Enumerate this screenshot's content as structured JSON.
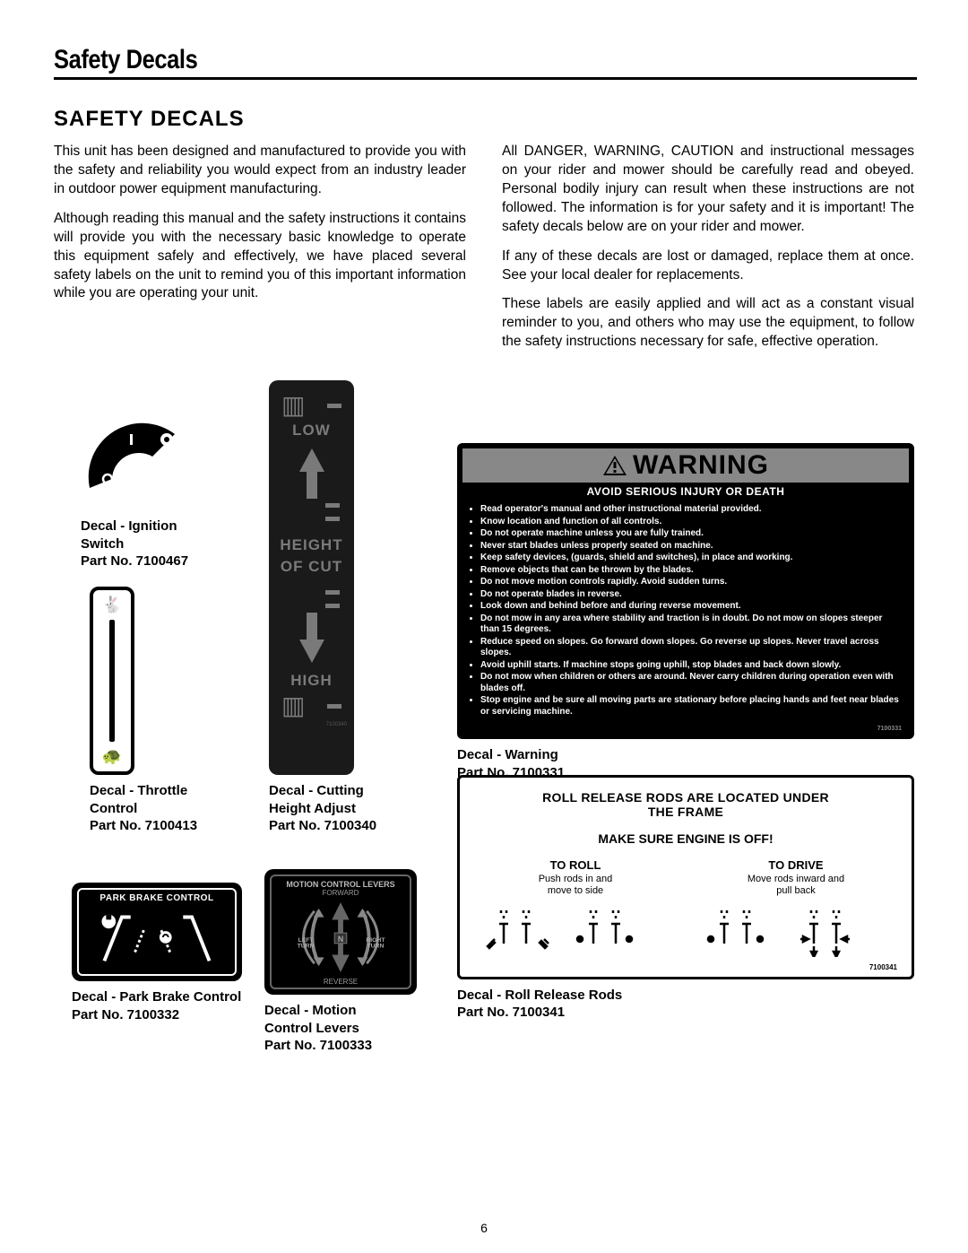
{
  "page": {
    "section_title": "Safety Decals",
    "subheading": "SAFETY DECALS",
    "page_number": "6"
  },
  "paragraphs": {
    "left": [
      "This unit has been designed and manufactured to provide you with the safety and reliability you would expect from an industry leader in outdoor power equipment manufacturing.",
      "Although reading this manual and the safety instructions it contains will provide you with the necessary basic knowledge to operate this equipment safely and effectively, we have placed several safety labels on the unit to remind you of this important information while you are operating your unit."
    ],
    "right": [
      "All DANGER, WARNING, CAUTION and instructional messages on your rider and mower should be carefully read and obeyed. Personal bodily injury can result when these instructions are not followed. The information is for your safety and it is important! The safety decals below are on your rider and mower.",
      "If any of these decals are lost or damaged, replace them at once. See your local dealer for replacements.",
      "These labels are easily applied and will act as a constant visual reminder to you, and others who may use the equipment, to follow the safety instructions necessary for safe, effective operation."
    ]
  },
  "decals": {
    "ignition": {
      "name": "Decal - Ignition\nSwitch",
      "part": "Part No. 7100467"
    },
    "throttle": {
      "name": "Decal - Throttle\nControl",
      "part": "Part No. 7100413"
    },
    "height": {
      "name": "Decal - Cutting\nHeight Adjust",
      "part": "Part No. 7100340",
      "low": "LOW",
      "mid1": "HEIGHT",
      "mid2": "OF CUT",
      "high": "HIGH",
      "pn": "7100340"
    },
    "parkbrake": {
      "name": "Decal - Park Brake Control",
      "part": "Part No. 7100332",
      "title": "PARK BRAKE CONTROL"
    },
    "motion": {
      "name": "Decal - Motion\nControl Levers",
      "part": "Part No. 7100333",
      "title": "MOTION CONTROL LEVERS",
      "forward": "FORWARD",
      "left": "LEFT\nTURN",
      "right": "RIGHT\nTURN",
      "n": "N",
      "reverse": "REVERSE"
    },
    "warning": {
      "name": "Decal - Warning",
      "part": "Part No. 7100331",
      "banner": "WARNING",
      "avoid": "AVOID SERIOUS INJURY OR DEATH",
      "pn": "7100331",
      "bullets": [
        "Read operator's manual and other instructional material provided.",
        "Know location and function of all controls.",
        "Do not operate machine unless you are fully trained.",
        "Never start blades unless properly seated on machine.",
        "Keep safety devices, (guards, shield and switches), in place and working.",
        "Remove objects that can be thrown by the blades.",
        "Do not move motion controls rapidly. Avoid sudden turns.",
        "Do not operate blades in reverse.",
        "Look down and behind before and during reverse movement.",
        "Do not mow in any area where stability and traction is in doubt. Do not mow on slopes steeper than 15 degrees.",
        "Reduce speed on slopes. Go forward down slopes. Go reverse up slopes. Never travel across slopes.",
        "Avoid uphill starts. If machine stops going uphill, stop blades and back down slowly.",
        "Do not mow when children or others are around. Never carry children during operation even with blades off.",
        "Stop engine and be sure all moving parts are stationary before placing hands and feet near blades or servicing machine."
      ]
    },
    "roll": {
      "name": "Decal - Roll Release Rods",
      "part": "Part No. 7100341",
      "h1a": "ROLL RELEASE RODS ARE LOCATED UNDER",
      "h1b": "THE FRAME",
      "h2": "MAKE SURE ENGINE IS OFF!",
      "toroll_t": "TO ROLL",
      "toroll_s": "Push rods in and\nmove to side",
      "todrive_t": "TO DRIVE",
      "todrive_s": "Move rods inward and\npull back",
      "pn": "7100341"
    }
  },
  "style": {
    "colors": {
      "black": "#000000",
      "offblack": "#1a1a1a",
      "grey": "#7a7a7a",
      "midgrey": "#888888",
      "white": "#ffffff"
    }
  }
}
